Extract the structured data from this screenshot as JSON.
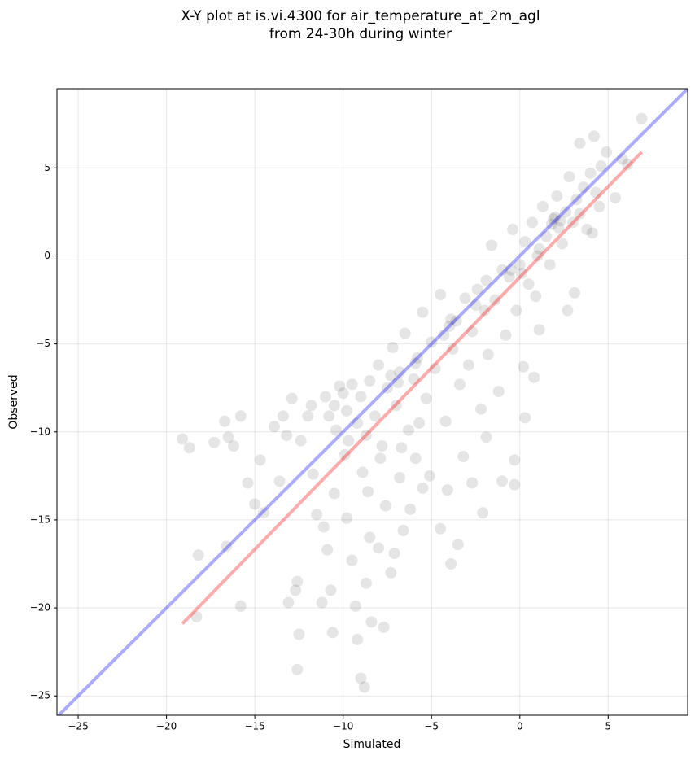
{
  "chart_data": {
    "type": "scatter",
    "title": [
      "X-Y plot at is.vi.4300 for air_temperature_at_2m_agl",
      "from 24-30h during winter"
    ],
    "x_label": "Simulated",
    "y_label": "Observed",
    "xlim": [
      -26.2,
      9.5
    ],
    "ylim": [
      -26.1,
      9.5
    ],
    "xticks": [
      {
        "value": -25,
        "label": "−25"
      },
      {
        "value": -20,
        "label": "−20"
      },
      {
        "value": -15,
        "label": "−15"
      },
      {
        "value": -10,
        "label": "−10"
      },
      {
        "value": -5,
        "label": "−5"
      },
      0,
      5
    ],
    "yticks": [
      {
        "value": -25,
        "label": "−25"
      },
      {
        "value": -20,
        "label": "−20"
      },
      {
        "value": -15,
        "label": "−15"
      },
      {
        "value": -10,
        "label": "−10"
      },
      {
        "value": -5,
        "label": "−5"
      },
      0,
      5
    ],
    "grid": true,
    "points": {
      "color": "#000000",
      "x": [
        -19.1,
        -18.7,
        -18.2,
        -18.3,
        -17.3,
        -16.7,
        -16.5,
        -16.2,
        -15.8,
        -16.6,
        -15.8,
        -15.4,
        -15,
        -14.7,
        -14.5,
        -13.9,
        -13.6,
        -13.4,
        -13.2,
        -13.1,
        -12.9,
        -12.7,
        -12.6,
        -12.5,
        -12.6,
        -12.4,
        -12,
        -11.8,
        -11.7,
        -11.5,
        -11.2,
        -11.1,
        -10.9,
        -10.7,
        -10.6,
        -10.5,
        -10.4,
        -10.2,
        -9.9,
        -9.8,
        -9.5,
        -9.3,
        -9.2,
        -9.0,
        -8.8,
        -8.7,
        -8.6,
        -8.5,
        -8.4,
        -8.0,
        -7.7,
        -7.6,
        -7.3,
        -7.1,
        -6.8,
        -6.6,
        -6.2,
        -5.9,
        -5.5,
        -5.1,
        -4.5,
        -4.1,
        -3.9,
        -3.5,
        -3.2,
        -2.7,
        -2.1,
        -1.9,
        -1.0,
        -0.3,
        -0.3,
        0.3,
        0.8,
        1.1,
        2.7,
        3.1,
        4.1,
        4.5,
        5.4,
        5.8,
        6.1,
        6.9,
        4.9,
        3.4,
        4.2,
        -11,
        -10.5,
        -10,
        -9.8,
        -9.5,
        -9.2,
        -9,
        -8.7,
        -8.5,
        -8.2,
        -8,
        -7.8,
        -7.5,
        -7.2,
        -7,
        -6.8,
        -6.5,
        -6.3,
        -6,
        -5.8,
        -5.5,
        -5.3,
        -5,
        -4.8,
        -4.5,
        -4.2,
        -4,
        -3.8,
        -3.6,
        -3.4,
        -3.1,
        -2.9,
        -2.7,
        -2.4,
        -2.2,
        -2,
        -1.8,
        -1.6,
        -1.4,
        -1.2,
        -1,
        -0.8,
        -0.6,
        -0.4,
        -0.2,
        0,
        0.2,
        0.3,
        0.5,
        0.7,
        0.9,
        1.1,
        1.3,
        1.5,
        1.7,
        1.9,
        2.1,
        2.2,
        2.4,
        2.6,
        2.8,
        3,
        3.2,
        3.4,
        3.6,
        3.8,
        4,
        4.3,
        4.6,
        -3.9,
        -4.3,
        -6.9,
        -7.3,
        1.8,
        2,
        2.3,
        0.1,
        -0.5,
        1,
        -1.9,
        -2.5,
        -5.9,
        -10.8,
        -9.7,
        -8.9,
        -7.9,
        -6.7,
        -5.7
      ],
      "y": [
        -10.4,
        -10.9,
        -17,
        -20.5,
        -10.6,
        -9.4,
        -10.3,
        -10.8,
        -9.1,
        -16.5,
        -19.9,
        -12.9,
        -14.1,
        -11.6,
        -14.6,
        -9.7,
        -12.8,
        -9.1,
        -10.2,
        -19.7,
        -8.1,
        -19,
        -18.5,
        -21.5,
        -23.5,
        -10.5,
        -9.1,
        -8.5,
        -12.4,
        -14.7,
        -19.7,
        -15.4,
        -16.7,
        -19,
        -21.4,
        -13.5,
        -9.9,
        -7.4,
        -11.3,
        -14.9,
        -17.3,
        -19.9,
        -21.8,
        -24,
        -24.5,
        -18.6,
        -13.4,
        -16,
        -20.8,
        -16.6,
        -21.1,
        -14.2,
        -18,
        -16.9,
        -12.6,
        -15.6,
        -14.4,
        -11.5,
        -13.2,
        -12.5,
        -15.5,
        -13.3,
        -17.5,
        -16.4,
        -11.4,
        -12.9,
        -14.6,
        -10.3,
        -12.8,
        -11.6,
        -13.0,
        -9.2,
        -6.9,
        -4.2,
        -3.1,
        -2.1,
        1.3,
        2.8,
        3.3,
        5.5,
        5.2,
        7.8,
        5.9,
        6.4,
        6.8,
        -8,
        -8.5,
        -7.8,
        -8.8,
        -7.3,
        -9.5,
        -8,
        -10.2,
        -7.1,
        -9.1,
        -6.2,
        -10.8,
        -7.5,
        -5.2,
        -8.5,
        -6.6,
        -4.4,
        -9.9,
        -7,
        -5.8,
        -3.2,
        -8.1,
        -4.9,
        -6.4,
        -2.2,
        -9.4,
        -4,
        -5.3,
        -3.7,
        -7.3,
        -2.4,
        -6.2,
        -4.3,
        -1.9,
        -8.7,
        -3.1,
        -5.6,
        0.6,
        -2.5,
        -7.7,
        -0.8,
        -4.5,
        -1.2,
        1.5,
        -3.1,
        -0.5,
        -6.3,
        0.8,
        -1.6,
        1.9,
        -2.3,
        0.4,
        2.8,
        1.1,
        -0.5,
        2.1,
        3.4,
        1.6,
        0.7,
        2.5,
        4.5,
        1.9,
        3.2,
        2.4,
        3.9,
        1.5,
        4.7,
        3.6,
        5.1,
        -3.6,
        -4.5,
        -7.2,
        -6.8,
        1.8,
        2.2,
        2,
        -1,
        -0.8,
        0,
        -1.4,
        -2.8,
        -6.1,
        -9.1,
        -10.5,
        -12.3,
        -11.5,
        -10.9,
        -9.5
      ]
    },
    "lines": [
      {
        "color": "#0000ff",
        "x": [
          -26.2,
          9.5
        ],
        "y": [
          -26.2,
          9.5
        ]
      },
      {
        "color": "#ff0000",
        "x": [
          -19.1,
          6.9
        ],
        "y": [
          -20.9,
          5.9
        ]
      }
    ]
  }
}
